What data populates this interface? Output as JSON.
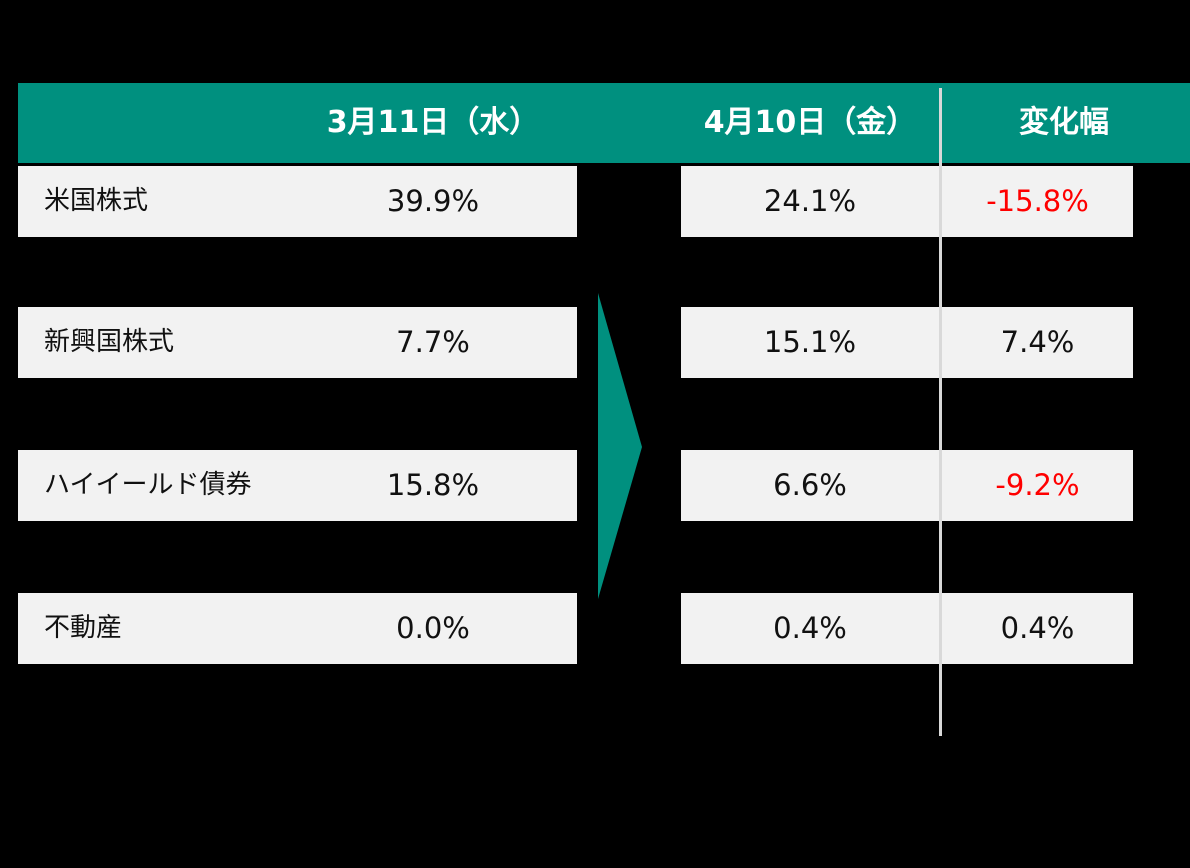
{
  "header": {
    "march": "3月11日（水）",
    "april": "4月10日（金）",
    "change": "変化幅"
  },
  "table": {
    "rows": [
      {
        "label": "米国株式",
        "march": "39.9%",
        "april": "24.1%",
        "change": "-15.8%",
        "change_color": "#ff0000"
      },
      {
        "label": "新興国株式",
        "march": "7.7%",
        "april": "15.1%",
        "change": "7.4%",
        "change_color": "#111111"
      },
      {
        "label": "ハイイールド債券",
        "march": "15.8%",
        "april": "6.6%",
        "change": "-9.2%",
        "change_color": "#ff0000"
      },
      {
        "label": "不動産",
        "march": "0.0%",
        "april": "0.4%",
        "change": "0.4%",
        "change_color": "#111111"
      }
    ]
  }
}
